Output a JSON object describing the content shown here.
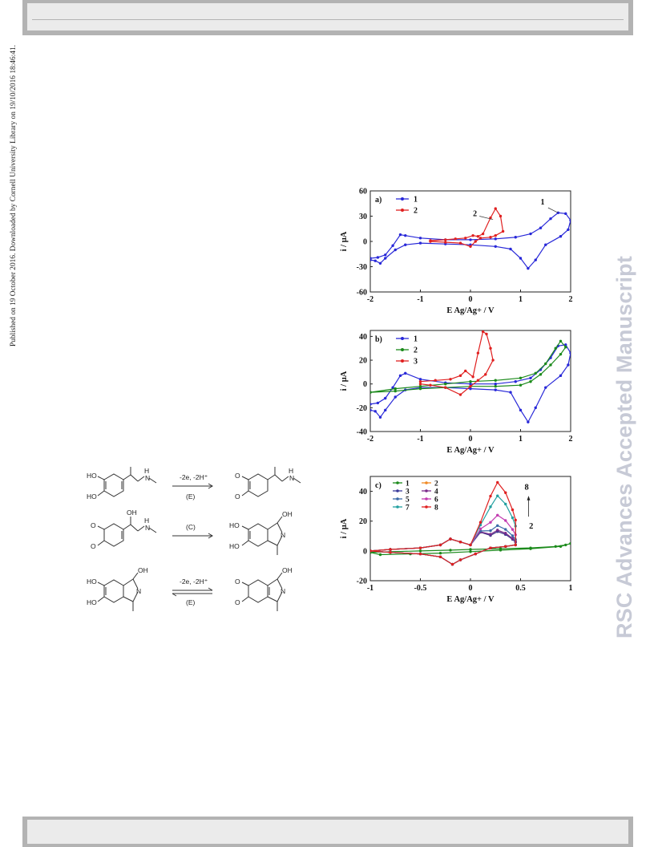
{
  "side_note": "Published on 19 October 2016. Downloaded by Cornell University Library on 19/10/2016 18:46:41.",
  "watermark": "RSC Advances Accepted Manuscript",
  "scheme": {
    "step1_label": "-2e, -2H⁺",
    "step1_tag": "(E)",
    "step2_tag": "(C)",
    "step3_label": "-2e, -2H⁺",
    "step3_tag": "(E)",
    "atom_labels": {
      "OH": "OH",
      "HO": "HO",
      "H": "H",
      "N": "N",
      "O": "O"
    }
  },
  "chart_data": [
    {
      "type": "line",
      "panel": "a)",
      "xlabel": "E Ag/Ag+ / V",
      "ylabel": "i / µA",
      "xlim": [
        -2,
        2
      ],
      "ylim": [
        -60,
        60
      ],
      "xticks": [
        "-2",
        "-1",
        "0",
        "1",
        "2"
      ],
      "yticks": [
        "60",
        "30",
        "0",
        "-30",
        "-60"
      ],
      "annotations": [
        "1",
        "2"
      ],
      "series": [
        {
          "name": "1",
          "color": "#2828d8",
          "x": [
            -2,
            -1.85,
            -1.7,
            -1.55,
            -1.4,
            -1.3,
            -1.0,
            -0.5,
            0,
            0.5,
            0.9,
            1.2,
            1.4,
            1.6,
            1.75,
            1.9,
            2.0,
            1.95,
            1.8,
            1.5,
            1.3,
            1.15,
            1.0,
            0.8,
            0.5,
            0,
            -0.5,
            -1.0,
            -1.3,
            -1.5,
            -1.7,
            -1.8,
            -1.9,
            -2.0
          ],
          "y": [
            -20,
            -19,
            -16,
            -5,
            8,
            7,
            4,
            2,
            2,
            3,
            5,
            9,
            16,
            27,
            34,
            33,
            25,
            14,
            6,
            -4,
            -22,
            -32,
            -20,
            -9,
            -6,
            -4,
            -3,
            -2,
            -4,
            -10,
            -20,
            -26,
            -23,
            -22
          ]
        },
        {
          "name": "2",
          "color": "#e02020",
          "x": [
            -0.8,
            -0.5,
            -0.3,
            -0.1,
            0.05,
            0.15,
            0.25,
            0.4,
            0.5,
            0.6,
            0.65,
            0.5,
            0.4,
            0.2,
            0.1,
            0.0,
            -0.2,
            -0.5,
            -0.8
          ],
          "y": [
            1,
            2,
            3,
            4,
            7,
            6,
            9,
            28,
            39,
            30,
            12,
            7,
            5,
            4,
            0,
            -6,
            -2,
            -1,
            0
          ]
        }
      ]
    },
    {
      "type": "line",
      "panel": "b)",
      "xlabel": "E Ag/Ag+ / V",
      "ylabel": "i / µA",
      "xlim": [
        -2,
        2
      ],
      "ylim": [
        -40,
        45
      ],
      "xticks": [
        "-2",
        "-1",
        "0",
        "1",
        "2"
      ],
      "yticks": [
        "40",
        "20",
        "0",
        "-20",
        "-40"
      ],
      "series": [
        {
          "name": "1",
          "color": "#2828d8",
          "x": [
            -2,
            -1.85,
            -1.7,
            -1.55,
            -1.4,
            -1.3,
            -1.0,
            -0.5,
            0,
            0.5,
            0.9,
            1.2,
            1.4,
            1.6,
            1.75,
            1.9,
            2.0,
            1.95,
            1.8,
            1.5,
            1.3,
            1.15,
            1.0,
            0.8,
            0.5,
            0,
            -0.5,
            -1.0,
            -1.3,
            -1.5,
            -1.7,
            -1.8,
            -1.9,
            -2.0
          ],
          "y": [
            -17,
            -16,
            -12,
            -3,
            7,
            9,
            4,
            1,
            0,
            0,
            2,
            5,
            12,
            22,
            32,
            33,
            26,
            16,
            7,
            -3,
            -20,
            -32,
            -22,
            -7,
            -5,
            -4,
            -3,
            -3,
            -5,
            -11,
            -22,
            -28,
            -23,
            -22
          ]
        },
        {
          "name": "2",
          "color": "#1b8a1b",
          "x": [
            -2,
            -1.5,
            -1,
            -0.5,
            0,
            0.5,
            1.0,
            1.3,
            1.5,
            1.7,
            1.8,
            1.9,
            1.8,
            1.6,
            1.4,
            1.2,
            1.0,
            0.5,
            0,
            -0.5,
            -1.0,
            -1.5,
            -2.0
          ],
          "y": [
            -7,
            -4,
            -2,
            0,
            2,
            3,
            5,
            9,
            17,
            30,
            36,
            31,
            25,
            16,
            8,
            2,
            -1,
            -2,
            -2,
            -3,
            -4,
            -6,
            -7
          ]
        },
        {
          "name": "3",
          "color": "#e02020",
          "x": [
            -1.0,
            -0.7,
            -0.4,
            -0.2,
            -0.1,
            0.05,
            0.15,
            0.25,
            0.32,
            0.4,
            0.45,
            0.3,
            0.15,
            0.0,
            -0.2,
            -0.5,
            -0.8,
            -1.0
          ],
          "y": [
            2,
            3,
            4,
            7,
            11,
            6,
            26,
            44,
            42,
            30,
            20,
            8,
            3,
            -2,
            -9,
            -3,
            -1,
            0
          ]
        }
      ]
    },
    {
      "type": "line",
      "panel": "c)",
      "xlabel": "E Ag/Ag+ / V",
      "ylabel": "i / µA",
      "xlim": [
        -1,
        1
      ],
      "ylim": [
        -20,
        50
      ],
      "xticks": [
        "-1",
        "-0.5",
        "0",
        "0.5",
        "1"
      ],
      "yticks": [
        "40",
        "20",
        "0",
        "-20"
      ],
      "annotations": [
        "8",
        "2"
      ],
      "series": [
        {
          "name": "1",
          "color": "#1b8a1b",
          "peak": 0
        },
        {
          "name": "2",
          "color": "#f08a24",
          "peak": 13
        },
        {
          "name": "3",
          "color": "#3a3a9a",
          "peak": 13
        },
        {
          "name": "4",
          "color": "#7a2a8a",
          "peak": 14
        },
        {
          "name": "5",
          "color": "#3a6aa8",
          "peak": 17
        },
        {
          "name": "6",
          "color": "#c23ab0",
          "peak": 24
        },
        {
          "name": "7",
          "color": "#22a0a0",
          "peak": 37
        },
        {
          "name": "8",
          "color": "#e02020",
          "peak": 46
        }
      ]
    }
  ]
}
